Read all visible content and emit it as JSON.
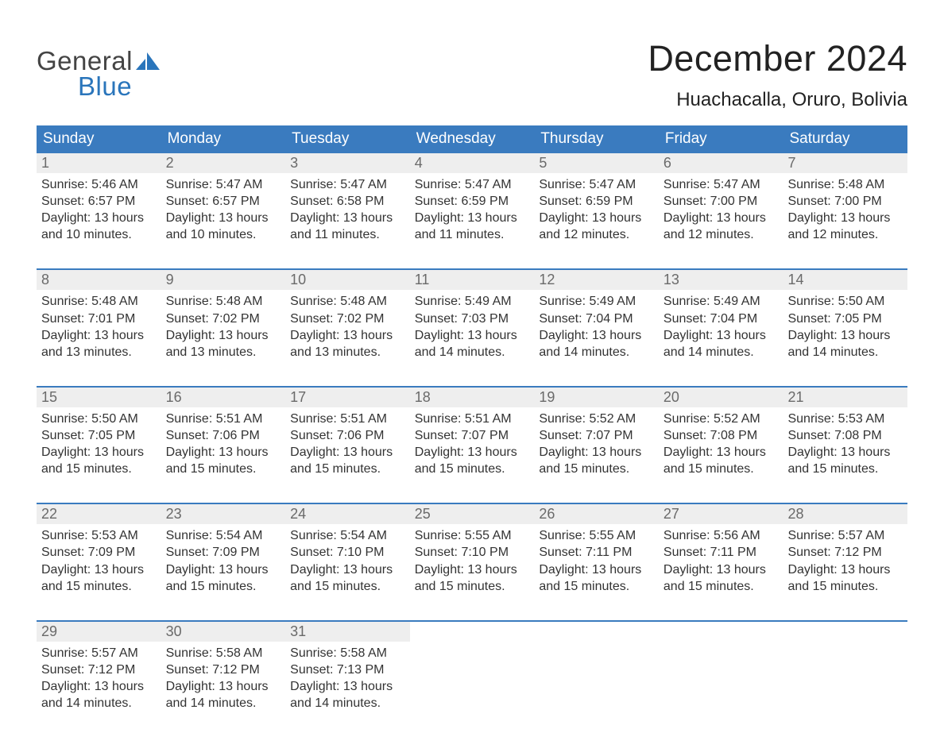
{
  "logo": {
    "general": "General",
    "blue": "Blue"
  },
  "title": "December 2024",
  "location": "Huachacalla, Oruro, Bolivia",
  "colors": {
    "header_bg": "#3a7bbf",
    "header_text": "#ffffff",
    "daynum_bg": "#eeeeee",
    "daynum_text": "#6a6a6a",
    "body_text": "#333333",
    "divider": "#3a7bbf",
    "logo_blue": "#2a75bb",
    "logo_gray": "#444444",
    "background": "#ffffff"
  },
  "typography": {
    "title_fontsize": 45,
    "location_fontsize": 24,
    "dow_fontsize": 19,
    "daynum_fontsize": 18,
    "cell_fontsize": 16,
    "logo_fontsize": 33,
    "font_family": "Arial"
  },
  "days_of_week": [
    "Sunday",
    "Monday",
    "Tuesday",
    "Wednesday",
    "Thursday",
    "Friday",
    "Saturday"
  ],
  "weeks": [
    {
      "days": [
        {
          "num": "1",
          "sunrise": "Sunrise: 5:46 AM",
          "sunset": "Sunset: 6:57 PM",
          "daylight1": "Daylight: 13 hours",
          "daylight2": "and 10 minutes."
        },
        {
          "num": "2",
          "sunrise": "Sunrise: 5:47 AM",
          "sunset": "Sunset: 6:57 PM",
          "daylight1": "Daylight: 13 hours",
          "daylight2": "and 10 minutes."
        },
        {
          "num": "3",
          "sunrise": "Sunrise: 5:47 AM",
          "sunset": "Sunset: 6:58 PM",
          "daylight1": "Daylight: 13 hours",
          "daylight2": "and 11 minutes."
        },
        {
          "num": "4",
          "sunrise": "Sunrise: 5:47 AM",
          "sunset": "Sunset: 6:59 PM",
          "daylight1": "Daylight: 13 hours",
          "daylight2": "and 11 minutes."
        },
        {
          "num": "5",
          "sunrise": "Sunrise: 5:47 AM",
          "sunset": "Sunset: 6:59 PM",
          "daylight1": "Daylight: 13 hours",
          "daylight2": "and 12 minutes."
        },
        {
          "num": "6",
          "sunrise": "Sunrise: 5:47 AM",
          "sunset": "Sunset: 7:00 PM",
          "daylight1": "Daylight: 13 hours",
          "daylight2": "and 12 minutes."
        },
        {
          "num": "7",
          "sunrise": "Sunrise: 5:48 AM",
          "sunset": "Sunset: 7:00 PM",
          "daylight1": "Daylight: 13 hours",
          "daylight2": "and 12 minutes."
        }
      ]
    },
    {
      "days": [
        {
          "num": "8",
          "sunrise": "Sunrise: 5:48 AM",
          "sunset": "Sunset: 7:01 PM",
          "daylight1": "Daylight: 13 hours",
          "daylight2": "and 13 minutes."
        },
        {
          "num": "9",
          "sunrise": "Sunrise: 5:48 AM",
          "sunset": "Sunset: 7:02 PM",
          "daylight1": "Daylight: 13 hours",
          "daylight2": "and 13 minutes."
        },
        {
          "num": "10",
          "sunrise": "Sunrise: 5:48 AM",
          "sunset": "Sunset: 7:02 PM",
          "daylight1": "Daylight: 13 hours",
          "daylight2": "and 13 minutes."
        },
        {
          "num": "11",
          "sunrise": "Sunrise: 5:49 AM",
          "sunset": "Sunset: 7:03 PM",
          "daylight1": "Daylight: 13 hours",
          "daylight2": "and 14 minutes."
        },
        {
          "num": "12",
          "sunrise": "Sunrise: 5:49 AM",
          "sunset": "Sunset: 7:04 PM",
          "daylight1": "Daylight: 13 hours",
          "daylight2": "and 14 minutes."
        },
        {
          "num": "13",
          "sunrise": "Sunrise: 5:49 AM",
          "sunset": "Sunset: 7:04 PM",
          "daylight1": "Daylight: 13 hours",
          "daylight2": "and 14 minutes."
        },
        {
          "num": "14",
          "sunrise": "Sunrise: 5:50 AM",
          "sunset": "Sunset: 7:05 PM",
          "daylight1": "Daylight: 13 hours",
          "daylight2": "and 14 minutes."
        }
      ]
    },
    {
      "days": [
        {
          "num": "15",
          "sunrise": "Sunrise: 5:50 AM",
          "sunset": "Sunset: 7:05 PM",
          "daylight1": "Daylight: 13 hours",
          "daylight2": "and 15 minutes."
        },
        {
          "num": "16",
          "sunrise": "Sunrise: 5:51 AM",
          "sunset": "Sunset: 7:06 PM",
          "daylight1": "Daylight: 13 hours",
          "daylight2": "and 15 minutes."
        },
        {
          "num": "17",
          "sunrise": "Sunrise: 5:51 AM",
          "sunset": "Sunset: 7:06 PM",
          "daylight1": "Daylight: 13 hours",
          "daylight2": "and 15 minutes."
        },
        {
          "num": "18",
          "sunrise": "Sunrise: 5:51 AM",
          "sunset": "Sunset: 7:07 PM",
          "daylight1": "Daylight: 13 hours",
          "daylight2": "and 15 minutes."
        },
        {
          "num": "19",
          "sunrise": "Sunrise: 5:52 AM",
          "sunset": "Sunset: 7:07 PM",
          "daylight1": "Daylight: 13 hours",
          "daylight2": "and 15 minutes."
        },
        {
          "num": "20",
          "sunrise": "Sunrise: 5:52 AM",
          "sunset": "Sunset: 7:08 PM",
          "daylight1": "Daylight: 13 hours",
          "daylight2": "and 15 minutes."
        },
        {
          "num": "21",
          "sunrise": "Sunrise: 5:53 AM",
          "sunset": "Sunset: 7:08 PM",
          "daylight1": "Daylight: 13 hours",
          "daylight2": "and 15 minutes."
        }
      ]
    },
    {
      "days": [
        {
          "num": "22",
          "sunrise": "Sunrise: 5:53 AM",
          "sunset": "Sunset: 7:09 PM",
          "daylight1": "Daylight: 13 hours",
          "daylight2": "and 15 minutes."
        },
        {
          "num": "23",
          "sunrise": "Sunrise: 5:54 AM",
          "sunset": "Sunset: 7:09 PM",
          "daylight1": "Daylight: 13 hours",
          "daylight2": "and 15 minutes."
        },
        {
          "num": "24",
          "sunrise": "Sunrise: 5:54 AM",
          "sunset": "Sunset: 7:10 PM",
          "daylight1": "Daylight: 13 hours",
          "daylight2": "and 15 minutes."
        },
        {
          "num": "25",
          "sunrise": "Sunrise: 5:55 AM",
          "sunset": "Sunset: 7:10 PM",
          "daylight1": "Daylight: 13 hours",
          "daylight2": "and 15 minutes."
        },
        {
          "num": "26",
          "sunrise": "Sunrise: 5:55 AM",
          "sunset": "Sunset: 7:11 PM",
          "daylight1": "Daylight: 13 hours",
          "daylight2": "and 15 minutes."
        },
        {
          "num": "27",
          "sunrise": "Sunrise: 5:56 AM",
          "sunset": "Sunset: 7:11 PM",
          "daylight1": "Daylight: 13 hours",
          "daylight2": "and 15 minutes."
        },
        {
          "num": "28",
          "sunrise": "Sunrise: 5:57 AM",
          "sunset": "Sunset: 7:12 PM",
          "daylight1": "Daylight: 13 hours",
          "daylight2": "and 15 minutes."
        }
      ]
    },
    {
      "days": [
        {
          "num": "29",
          "sunrise": "Sunrise: 5:57 AM",
          "sunset": "Sunset: 7:12 PM",
          "daylight1": "Daylight: 13 hours",
          "daylight2": "and 14 minutes."
        },
        {
          "num": "30",
          "sunrise": "Sunrise: 5:58 AM",
          "sunset": "Sunset: 7:12 PM",
          "daylight1": "Daylight: 13 hours",
          "daylight2": "and 14 minutes."
        },
        {
          "num": "31",
          "sunrise": "Sunrise: 5:58 AM",
          "sunset": "Sunset: 7:13 PM",
          "daylight1": "Daylight: 13 hours",
          "daylight2": "and 14 minutes."
        },
        {
          "empty": true
        },
        {
          "empty": true
        },
        {
          "empty": true
        },
        {
          "empty": true
        }
      ]
    }
  ]
}
